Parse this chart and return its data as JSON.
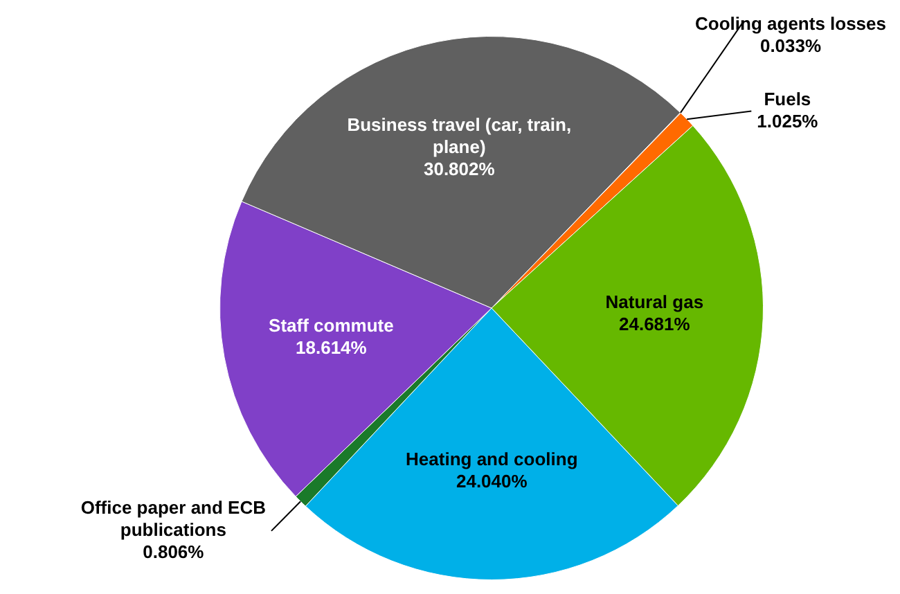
{
  "chart_data": {
    "type": "pie",
    "categories": [
      "Cooling agents losses",
      "Fuels",
      "Natural gas",
      "Heating and cooling",
      "Office paper and ECB publications",
      "Staff commute",
      "Business travel (car, train, plane)"
    ],
    "values": [
      0.033,
      1.025,
      24.681,
      24.04,
      0.806,
      18.614,
      30.802
    ],
    "value_labels": [
      "0.033%",
      "1.025%",
      "24.681%",
      "24.040%",
      "0.806%",
      "18.614%",
      "30.802%"
    ],
    "colors": [
      "#e03010",
      "#ff6a00",
      "#66b800",
      "#00b0e8",
      "#1a7a2a",
      "#8040c8",
      "#606060"
    ],
    "legend": false
  }
}
